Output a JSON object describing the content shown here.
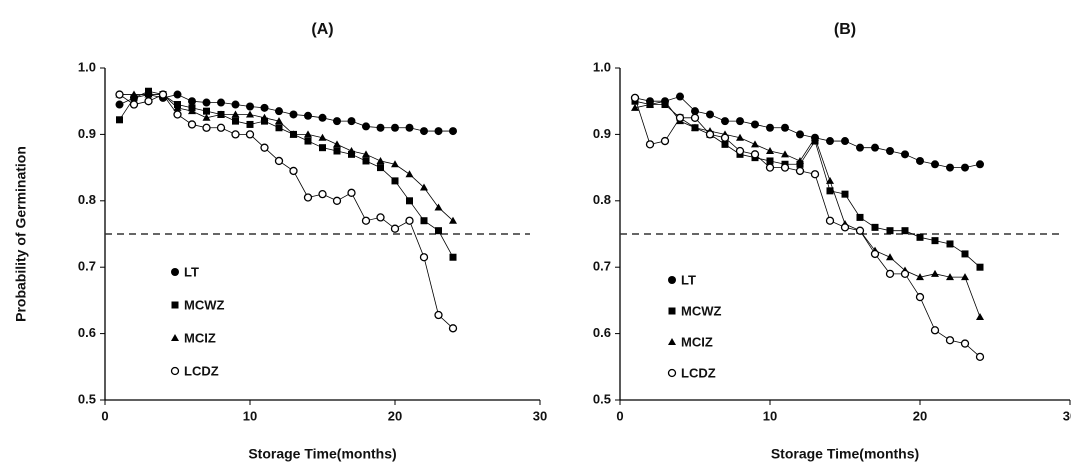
{
  "chart_data": [
    {
      "type": "line",
      "title": "(A)",
      "x_label": "Storage Time(months)",
      "y_label": "Probability of Germination",
      "x": [
        1,
        2,
        3,
        4,
        5,
        6,
        7,
        8,
        9,
        10,
        11,
        12,
        13,
        14,
        15,
        16,
        17,
        18,
        19,
        20,
        21,
        22,
        23,
        24
      ],
      "xlim": [
        0,
        30
      ],
      "xticks": [
        0,
        10,
        20,
        30
      ],
      "ylim": [
        0.5,
        1.0
      ],
      "yticks": [
        0.5,
        0.6,
        0.7,
        0.8,
        0.9,
        {
          "value": 1.0,
          "label": "1.0"
        }
      ],
      "hline": 0.75,
      "legend": "lower left",
      "series": [
        {
          "name": "LT",
          "color": "#000000",
          "marker": "circle",
          "values": [
            0.945,
            0.955,
            0.96,
            0.955,
            0.96,
            0.95,
            0.948,
            0.948,
            0.945,
            0.942,
            0.94,
            0.935,
            0.93,
            0.928,
            0.925,
            0.92,
            0.92,
            0.912,
            0.91,
            0.91,
            0.91,
            0.905,
            0.905,
            0.905
          ]
        },
        {
          "name": "MCWZ",
          "color": "#000000",
          "marker": "square",
          "values": [
            0.922,
            0.955,
            0.965,
            0.96,
            0.945,
            0.94,
            0.935,
            0.93,
            0.92,
            0.915,
            0.92,
            0.91,
            0.9,
            0.89,
            0.88,
            0.875,
            0.87,
            0.86,
            0.85,
            0.83,
            0.8,
            0.77,
            0.755,
            0.715
          ]
        },
        {
          "name": "MCIZ",
          "color": "#000000",
          "marker": "triangle",
          "values": [
            0.96,
            0.96,
            0.96,
            0.96,
            0.94,
            0.935,
            0.925,
            0.93,
            0.93,
            0.93,
            0.925,
            0.92,
            0.9,
            0.9,
            0.895,
            0.885,
            0.875,
            0.87,
            0.86,
            0.855,
            0.84,
            0.82,
            0.79,
            0.77
          ]
        },
        {
          "name": "LCDZ",
          "color": "#000000",
          "marker": "open-circle",
          "values": [
            0.96,
            0.945,
            0.95,
            0.96,
            0.93,
            0.915,
            0.91,
            0.91,
            0.9,
            0.9,
            0.88,
            0.86,
            0.845,
            0.805,
            0.81,
            0.8,
            0.812,
            0.77,
            0.775,
            0.758,
            0.77,
            0.715,
            0.628,
            0.608
          ]
        }
      ]
    },
    {
      "type": "line",
      "title": "(B)",
      "x_label": "Storage Time(months)",
      "x": [
        1,
        2,
        3,
        4,
        5,
        6,
        7,
        8,
        9,
        10,
        11,
        12,
        13,
        14,
        15,
        16,
        17,
        18,
        19,
        20,
        21,
        22,
        23,
        24
      ],
      "xlim": [
        0,
        30
      ],
      "xticks": [
        0,
        10,
        20,
        30
      ],
      "ylim": [
        0.5,
        1.0
      ],
      "yticks": [
        0.5,
        0.6,
        0.7,
        0.8,
        0.9,
        {
          "value": 1.0,
          "label": "1.0"
        }
      ],
      "hline": 0.75,
      "legend": "lower left",
      "series": [
        {
          "name": "LT",
          "color": "#000000",
          "marker": "circle",
          "values": [
            0.955,
            0.95,
            0.95,
            0.957,
            0.935,
            0.93,
            0.92,
            0.92,
            0.915,
            0.91,
            0.91,
            0.9,
            0.895,
            0.89,
            0.89,
            0.88,
            0.88,
            0.875,
            0.87,
            0.86,
            0.855,
            0.85,
            0.85,
            0.855
          ]
        },
        {
          "name": "MCWZ",
          "color": "#000000",
          "marker": "square",
          "values": [
            0.95,
            0.945,
            0.945,
            0.925,
            0.91,
            0.9,
            0.885,
            0.87,
            0.865,
            0.86,
            0.855,
            0.855,
            0.89,
            0.815,
            0.81,
            0.775,
            0.76,
            0.755,
            0.755,
            0.745,
            0.74,
            0.735,
            0.72,
            0.7
          ]
        },
        {
          "name": "MCIZ",
          "color": "#000000",
          "marker": "triangle",
          "values": [
            0.94,
            0.945,
            0.95,
            0.92,
            0.91,
            0.905,
            0.9,
            0.895,
            0.885,
            0.875,
            0.87,
            0.86,
            0.895,
            0.83,
            0.765,
            0.755,
            0.725,
            0.715,
            0.695,
            0.685,
            0.69,
            0.685,
            0.685,
            0.625
          ]
        },
        {
          "name": "LCDZ",
          "color": "#000000",
          "marker": "open-circle",
          "values": [
            0.955,
            0.885,
            0.89,
            0.925,
            0.925,
            0.9,
            0.895,
            0.875,
            0.87,
            0.85,
            0.85,
            0.845,
            0.84,
            0.77,
            0.76,
            0.755,
            0.72,
            0.69,
            0.69,
            0.655,
            0.605,
            0.59,
            0.585,
            0.565
          ]
        }
      ]
    }
  ]
}
